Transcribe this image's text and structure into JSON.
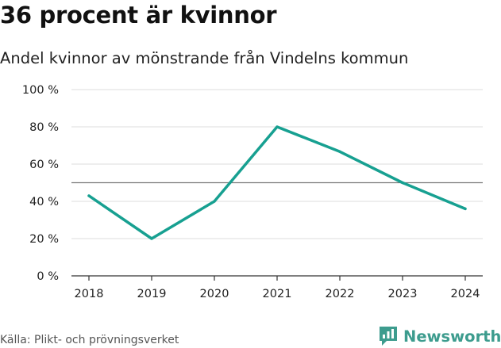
{
  "title": "36 procent är kvinnor",
  "subtitle": "Andel kvinnor av mönstrande från Vindelns kommun",
  "source": "Källa: Plikt- och prövningsverket",
  "brand": {
    "name": "Newsworthy",
    "color": "#3d9c8e"
  },
  "chart_data": {
    "type": "line",
    "title": "36 procent är kvinnor",
    "subtitle": "Andel kvinnor av mönstrande från Vindelns kommun",
    "xlabel": "",
    "ylabel": "",
    "categories": [
      "2018",
      "2019",
      "2020",
      "2021",
      "2022",
      "2023",
      "2024"
    ],
    "series": [
      {
        "values": [
          43,
          20,
          40,
          80,
          66.7,
          50,
          36
        ],
        "color": "#17a091"
      }
    ],
    "ylim": [
      0,
      100
    ],
    "yticks": [
      0,
      20,
      40,
      60,
      80,
      100
    ],
    "ytick_labels": [
      "0 %",
      "20 %",
      "40 %",
      "60 %",
      "80 %",
      "100 %"
    ],
    "reference_line": 50,
    "grid": true
  }
}
